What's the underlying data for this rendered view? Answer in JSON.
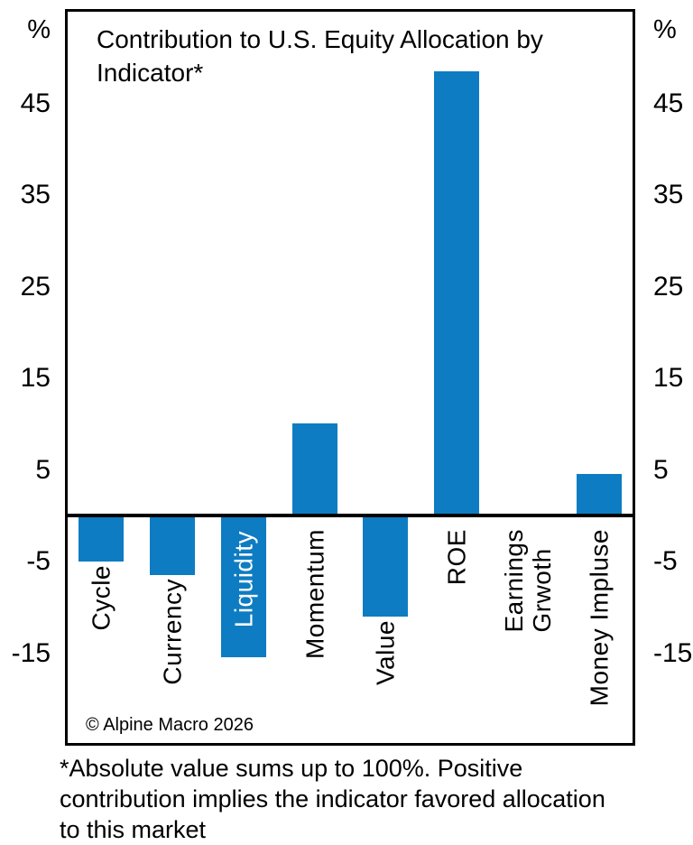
{
  "chart_data": {
    "type": "bar",
    "title": "Contribution to U.S. Equity Allocation by Indicator*",
    "unit": "%",
    "categories": [
      "Cycle",
      "Currency",
      "Liquidity",
      "Momentum",
      "Value",
      "ROE",
      "Earnings Grwoth",
      "Money Impluse"
    ],
    "values": [
      -5,
      -6.5,
      -15.5,
      10,
      -11,
      48.5,
      0,
      4.5
    ],
    "yticks": [
      45,
      35,
      25,
      15,
      5,
      -5,
      -15
    ],
    "ylim": [
      -25,
      55
    ],
    "bar_color": "#0E7CC2",
    "inside_bar_labels": [
      "Liquidity"
    ],
    "inside_label_color": "#ffffff",
    "wrap_labels": [
      "Earnings Grwoth"
    ],
    "grid": false,
    "legend": false
  },
  "copyright": "© Alpine Macro 2026",
  "footnote": "*Absolute value sums up to 100%. Positive contribution implies the indicator favored allocation to this market"
}
